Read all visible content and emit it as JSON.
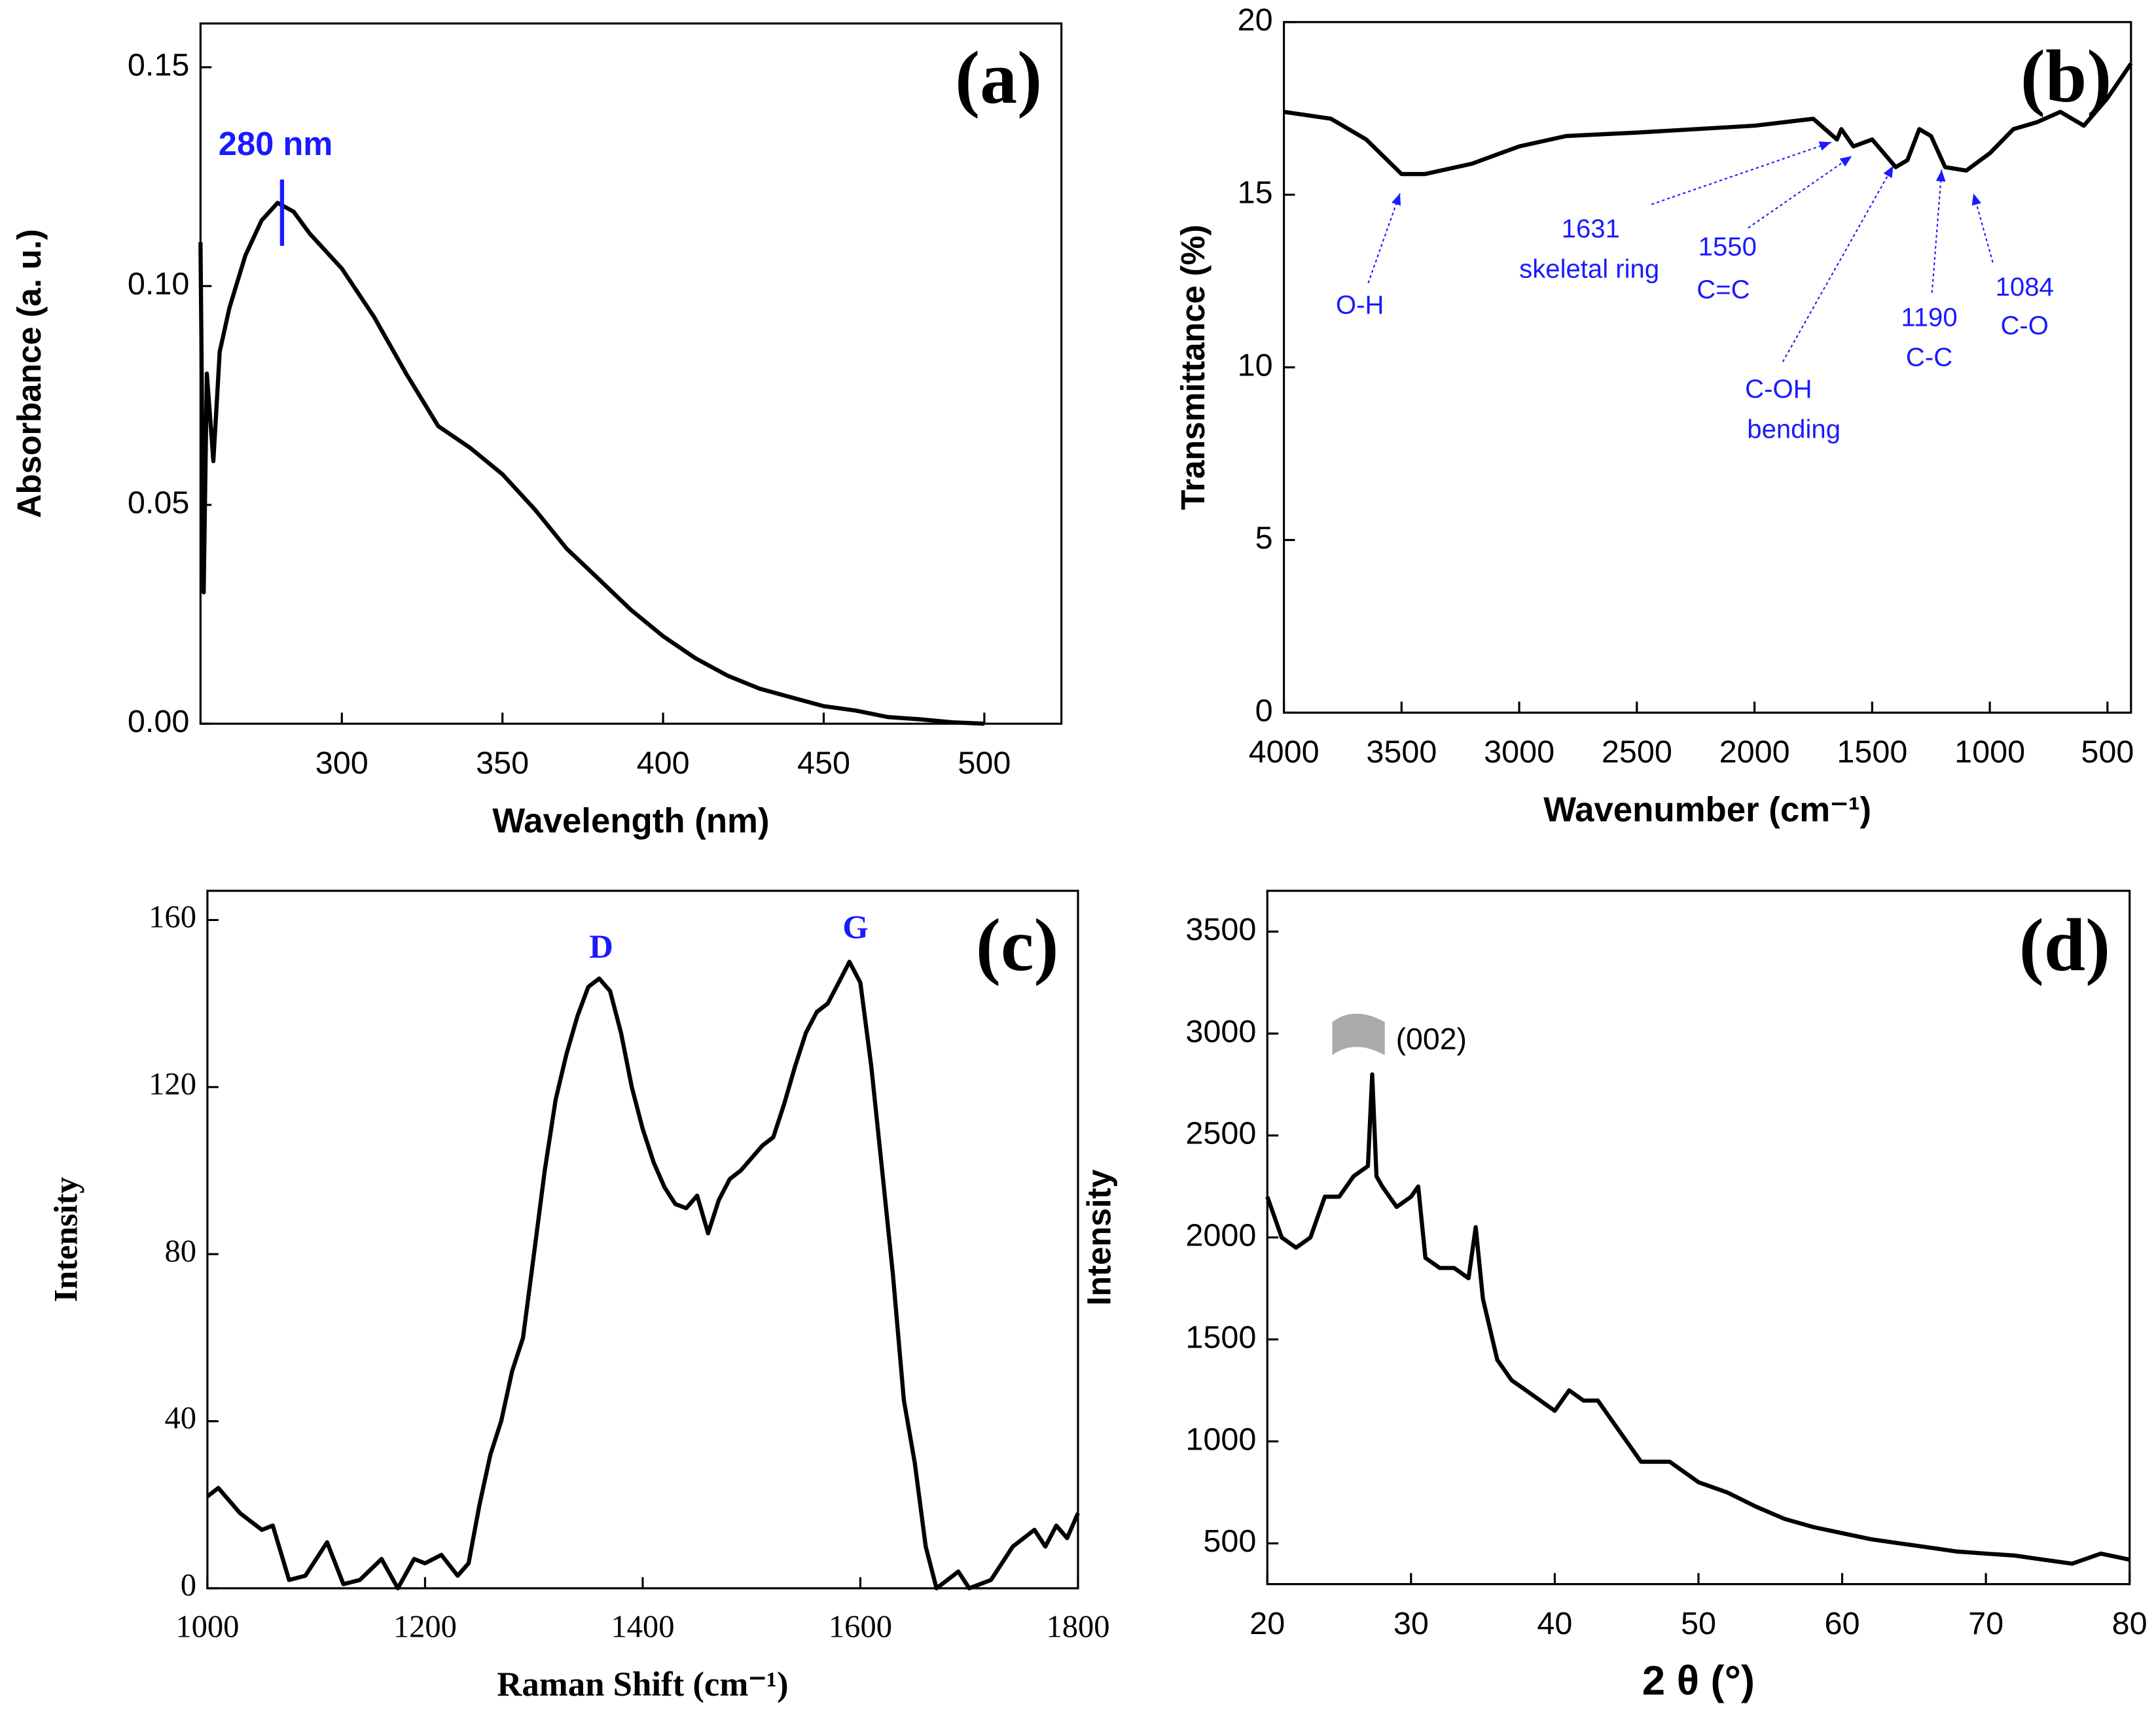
{
  "chart_data": [
    {
      "type": "line",
      "panel_label": "(a)",
      "x_label": "Wavelength (nm)",
      "y_label": "Absorbance (a. u.)",
      "color": "#000000",
      "annotation_color": "#1a1aff",
      "x": [
        256,
        257,
        258,
        260,
        262,
        265,
        270,
        275,
        280,
        285,
        290,
        300,
        310,
        320,
        330,
        340,
        350,
        360,
        370,
        380,
        390,
        400,
        410,
        420,
        430,
        440,
        450,
        460,
        470,
        480,
        490,
        500
      ],
      "values": [
        0.11,
        0.03,
        0.08,
        0.06,
        0.085,
        0.095,
        0.107,
        0.115,
        0.119,
        0.117,
        0.112,
        0.104,
        0.093,
        0.08,
        0.068,
        0.063,
        0.057,
        0.049,
        0.04,
        0.033,
        0.026,
        0.02,
        0.015,
        0.011,
        0.008,
        0.006,
        0.004,
        0.003,
        0.0015,
        0.001,
        0.0003,
        0
      ],
      "xlim": [
        256,
        524
      ],
      "ylim": [
        0,
        0.16
      ],
      "xticks": [
        300,
        350,
        400,
        450,
        500
      ],
      "yticks": [
        {
          "value": 0,
          "label": "0.00"
        },
        {
          "value": 0.05,
          "label": "0.05"
        },
        {
          "value": 0.1,
          "label": "0.10"
        },
        {
          "value": 0.15,
          "label": "0.15"
        }
      ],
      "annotations": [
        {
          "text": "280 nm"
        }
      ]
    },
    {
      "type": "line",
      "panel_label": "(b)",
      "x_label": "Wavenumber (cm⁻¹)",
      "y_label": "Transmittance (%)",
      "color": "#000000",
      "annotation_color": "#1a1aff",
      "x": [
        4000,
        3800,
        3650,
        3500,
        3400,
        3200,
        3000,
        2800,
        2500,
        2000,
        1750,
        1650,
        1631,
        1580,
        1500,
        1400,
        1350,
        1300,
        1250,
        1190,
        1100,
        1000,
        900,
        800,
        700,
        600,
        500,
        400
      ],
      "values": [
        17.4,
        17.2,
        16.6,
        15.6,
        15.6,
        15.9,
        16.4,
        16.7,
        16.8,
        17.0,
        17.2,
        16.6,
        16.9,
        16.4,
        16.6,
        15.8,
        16.0,
        16.9,
        16.7,
        15.8,
        15.7,
        16.2,
        16.9,
        17.1,
        17.4,
        17.0,
        17.8,
        18.8
      ],
      "xlim": [
        4000,
        400
      ],
      "ylim": [
        0,
        20
      ],
      "xticks": [
        4000,
        3500,
        3000,
        2500,
        2000,
        1500,
        1000,
        500
      ],
      "yticks": [
        0,
        5,
        10,
        15,
        20
      ],
      "annotations": [
        {
          "text": "O-H"
        },
        {
          "text": "1631"
        },
        {
          "text": "skeletal ring"
        },
        {
          "text": "1550"
        },
        {
          "text": "C=C"
        },
        {
          "text": "C-OH"
        },
        {
          "text": "bending"
        },
        {
          "text": "1190"
        },
        {
          "text": "C-C"
        },
        {
          "text": "1084"
        },
        {
          "text": "C-O"
        }
      ]
    },
    {
      "type": "line",
      "panel_label": "(c)",
      "x_label": "Raman Shift (cm⁻¹)",
      "y_label": "Intensity",
      "color": "#000000",
      "annotation_color": "#1a1aff",
      "x": [
        1000,
        1010,
        1030,
        1050,
        1060,
        1075,
        1090,
        1110,
        1125,
        1140,
        1160,
        1175,
        1190,
        1200,
        1215,
        1230,
        1240,
        1250,
        1260,
        1270,
        1280,
        1290,
        1300,
        1310,
        1320,
        1330,
        1340,
        1350,
        1360,
        1370,
        1380,
        1390,
        1400,
        1410,
        1420,
        1430,
        1440,
        1450,
        1460,
        1470,
        1480,
        1490,
        1500,
        1510,
        1520,
        1530,
        1540,
        1550,
        1560,
        1570,
        1580,
        1590,
        1600,
        1610,
        1620,
        1630,
        1640,
        1650,
        1660,
        1670,
        1680,
        1690,
        1700,
        1720,
        1740,
        1760,
        1770,
        1780,
        1790,
        1800
      ],
      "values": [
        22,
        24,
        18,
        14,
        15,
        2,
        3,
        11,
        1,
        2,
        7,
        0,
        7,
        6,
        8,
        3,
        6,
        20,
        32,
        40,
        52,
        60,
        80,
        100,
        117,
        128,
        137,
        144,
        146,
        143,
        133,
        120,
        110,
        102,
        96,
        92,
        91,
        94,
        85,
        93,
        98,
        100,
        103,
        106,
        108,
        116,
        125,
        133,
        138,
        140,
        145,
        150,
        145,
        125,
        100,
        75,
        45,
        30,
        10,
        0,
        2,
        4,
        0,
        2,
        10,
        14,
        10,
        15,
        12,
        18
      ],
      "xlim": [
        1000,
        1800
      ],
      "ylim": [
        0,
        167
      ],
      "xticks": [
        1000,
        1200,
        1400,
        1600,
        1800
      ],
      "yticks": [
        0,
        40,
        80,
        120,
        160
      ],
      "annotations": [
        {
          "text": "D"
        },
        {
          "text": "G"
        }
      ]
    },
    {
      "type": "line",
      "panel_label": "(d)",
      "x_label": "2 θ (°)",
      "y_label": "Intensity",
      "color": "#000000",
      "annotation_color": "#000000",
      "x": [
        20,
        21,
        22,
        23,
        24,
        25,
        26,
        27,
        27.3,
        27.6,
        28,
        29,
        30,
        30.5,
        31,
        32,
        33,
        34,
        34.5,
        35,
        36,
        37,
        38,
        39,
        40,
        41,
        42,
        43,
        44,
        45,
        46,
        47,
        48,
        49,
        50,
        52,
        54,
        56,
        58,
        60,
        62,
        64,
        66,
        68,
        70,
        72,
        74,
        76,
        78,
        80
      ],
      "values": [
        2200,
        2000,
        1950,
        2000,
        2200,
        2200,
        2300,
        2350,
        2800,
        2300,
        2250,
        2150,
        2200,
        2250,
        1900,
        1850,
        1850,
        1800,
        2050,
        1700,
        1400,
        1300,
        1250,
        1200,
        1150,
        1250,
        1200,
        1200,
        1100,
        1000,
        900,
        900,
        900,
        850,
        800,
        750,
        680,
        620,
        580,
        550,
        520,
        500,
        480,
        460,
        450,
        440,
        420,
        400,
        450,
        420
      ],
      "xlim": [
        20,
        80
      ],
      "ylim": [
        300,
        3700
      ],
      "xticks": [
        20,
        30,
        40,
        50,
        60,
        70,
        80
      ],
      "yticks": [
        500,
        1000,
        1500,
        2000,
        2500,
        3000,
        3500
      ],
      "annotations": [
        {
          "text": "(002)"
        }
      ]
    }
  ]
}
